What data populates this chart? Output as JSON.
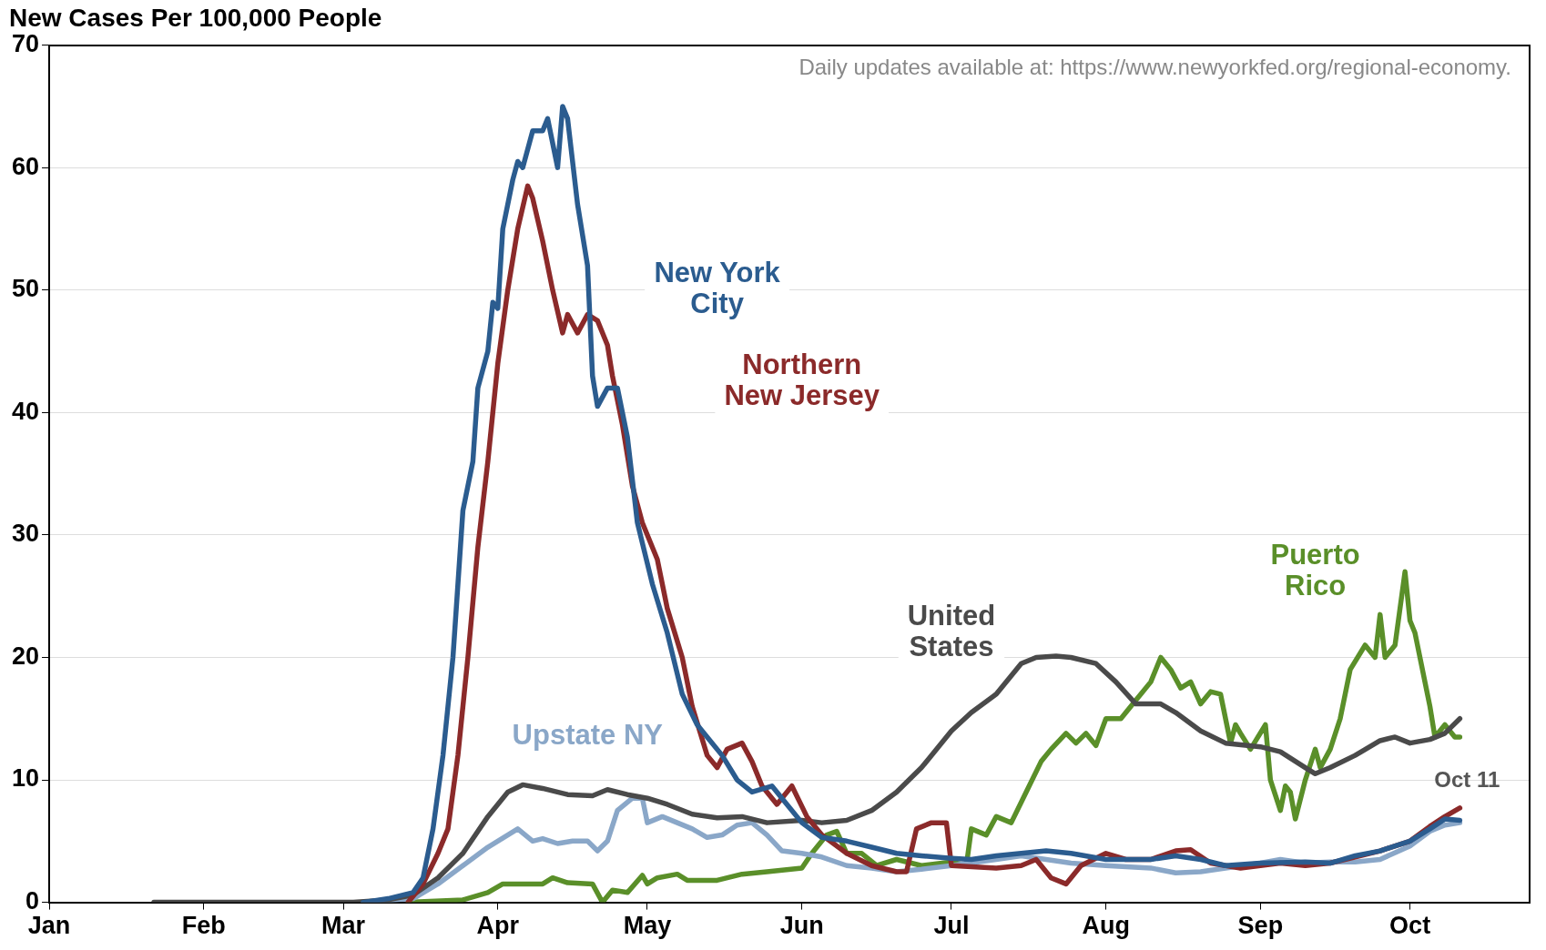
{
  "chart_data": {
    "type": "line",
    "title": "New Cases Per 100,000 People",
    "annotations": [
      "Daily updates available at: https://www.newyorkfed.org/regional-economy.",
      {
        "text": "Oct 11",
        "x": "--10-11",
        "y": 7.7
      }
    ],
    "xlim": [
      "--01-01",
      "--10-25"
    ],
    "xticks": [
      {
        "value": "--01-01",
        "label": "Jan"
      },
      {
        "value": "--02-01",
        "label": "Feb"
      },
      {
        "value": "--03-01",
        "label": "Mar"
      },
      {
        "value": "--04-01",
        "label": "Apr"
      },
      {
        "value": "--05-01",
        "label": "May"
      },
      {
        "value": "--06-01",
        "label": "Jun"
      },
      {
        "value": "--07-01",
        "label": "Jul"
      },
      {
        "value": "--08-01",
        "label": "Aug"
      },
      {
        "value": "--09-01",
        "label": "Sep"
      },
      {
        "value": "--10-01",
        "label": "Oct"
      }
    ],
    "ylim": [
      0,
      70
    ],
    "yticks": [
      0,
      10,
      20,
      30,
      40,
      50,
      60,
      70
    ],
    "grid": "y",
    "legend": false,
    "marker": "none",
    "line_style": "solid",
    "series": [
      {
        "name": "New York City",
        "color": "#2b5c8f",
        "x": [
          "--03-05",
          "--03-10",
          "--03-15",
          "--03-17",
          "--03-19",
          "--03-21",
          "--03-23",
          "--03-25",
          "--03-27",
          "--03-28",
          "--03-30",
          "--03-31",
          "--04-01",
          "--04-02",
          "--04-04",
          "--04-05",
          "--04-06",
          "--04-08",
          "--04-10",
          "--04-11",
          "--04-13",
          "--04-14",
          "--04-15",
          "--04-17",
          "--04-19",
          "--04-20",
          "--04-21",
          "--04-23",
          "--04-25",
          "--04-27",
          "--04-29",
          "--05-02",
          "--05-05",
          "--05-08",
          "--05-11",
          "--05-13",
          "--05-16",
          "--05-19",
          "--05-22",
          "--05-26",
          "--05-29",
          "--06-01",
          "--06-05",
          "--06-10",
          "--06-15",
          "--06-20",
          "--06-25",
          "--07-01",
          "--07-05",
          "--07-10",
          "--07-15",
          "--07-20",
          "--07-25",
          "--08-01",
          "--08-10",
          "--08-15",
          "--08-20",
          "--08-25",
          "--09-01",
          "--09-10",
          "--09-15",
          "--09-20",
          "--09-25",
          "--10-01",
          "--10-05",
          "--10-08",
          "--10-11"
        ],
        "values": [
          0,
          0.3,
          0.8,
          2,
          6,
          12,
          20,
          32,
          36,
          42,
          45,
          49,
          48.5,
          55,
          59,
          60.5,
          60,
          63,
          63,
          64,
          60,
          65,
          64,
          57,
          52,
          43,
          40.5,
          42,
          42,
          38,
          31,
          26,
          22,
          17,
          14.5,
          13.5,
          12,
          10,
          9,
          9.5,
          8,
          6.5,
          5.3,
          5,
          4.5,
          4,
          3.8,
          3.6,
          3.5,
          3.8,
          4,
          4.2,
          4,
          3.5,
          3.5,
          3.8,
          3.5,
          3,
          3.2,
          3.3,
          3.2,
          3.8,
          4.2,
          5,
          6,
          6.8,
          6.7
        ]
      },
      {
        "name": "Northern New Jersey",
        "color": "#8b2a2a",
        "x": [
          "--03-14",
          "--03-17",
          "--03-20",
          "--03-22",
          "--03-24",
          "--03-26",
          "--03-28",
          "--03-30",
          "--04-01",
          "--04-03",
          "--04-05",
          "--04-07",
          "--04-08",
          "--04-10",
          "--04-12",
          "--04-14",
          "--04-15",
          "--04-17",
          "--04-19",
          "--04-21",
          "--04-23",
          "--04-24",
          "--04-26",
          "--04-28",
          "--04-30",
          "--05-03",
          "--05-05",
          "--05-08",
          "--05-10",
          "--05-13",
          "--05-15",
          "--05-17",
          "--05-20",
          "--05-22",
          "--05-24",
          "--05-27",
          "--05-30",
          "--06-02",
          "--06-05",
          "--06-10",
          "--06-15",
          "--06-20",
          "--06-22",
          "--06-24",
          "--06-27",
          "--06-30",
          "--07-01",
          "--07-10",
          "--07-15",
          "--07-18",
          "--07-21",
          "--07-24",
          "--07-27",
          "--08-01",
          "--08-05",
          "--08-10",
          "--08-15",
          "--08-18",
          "--08-22",
          "--08-28",
          "--09-01",
          "--09-05",
          "--09-10",
          "--09-15",
          "--09-20",
          "--09-25",
          "--10-01",
          "--10-05",
          "--10-08",
          "--10-11"
        ],
        "values": [
          0,
          1.5,
          4,
          6,
          12,
          20,
          29,
          36,
          44,
          50,
          55,
          58.5,
          57.5,
          54,
          50,
          46.5,
          48,
          46.5,
          48,
          47.5,
          45.5,
          43,
          39,
          34,
          31,
          28,
          24,
          20,
          16,
          12,
          11,
          12.5,
          13,
          11.5,
          9.5,
          8,
          9.5,
          7,
          5.5,
          4,
          3,
          2.5,
          2.5,
          6,
          6.5,
          6.5,
          3,
          2.8,
          3,
          3.5,
          2,
          1.5,
          3,
          4,
          3.5,
          3.5,
          4.2,
          4.3,
          3.2,
          2.8,
          3,
          3.2,
          3,
          3.2,
          3.7,
          4.2,
          5,
          6.2,
          7,
          7.7
        ]
      },
      {
        "name": "United States",
        "color": "#4a4a4a",
        "x": [
          "--01-22",
          "--03-03",
          "--03-10",
          "--03-15",
          "--03-20",
          "--03-25",
          "--03-30",
          "--04-03",
          "--04-06",
          "--04-10",
          "--04-15",
          "--04-20",
          "--04-23",
          "--04-27",
          "--05-01",
          "--05-05",
          "--05-10",
          "--05-15",
          "--05-20",
          "--05-25",
          "--06-01",
          "--06-05",
          "--06-10",
          "--06-15",
          "--06-20",
          "--06-25",
          "--07-01",
          "--07-05",
          "--07-10",
          "--07-15",
          "--07-18",
          "--07-22",
          "--07-25",
          "--07-30",
          "--08-03",
          "--08-07",
          "--08-12",
          "--08-15",
          "--08-20",
          "--08-25",
          "--09-01",
          "--09-05",
          "--09-10",
          "--09-12",
          "--09-15",
          "--09-20",
          "--09-25",
          "--09-28",
          "--10-01",
          "--10-05",
          "--10-08",
          "--10-11"
        ],
        "values": [
          0,
          0,
          0.2,
          0.6,
          2,
          4,
          7,
          9,
          9.6,
          9.3,
          8.8,
          8.7,
          9.2,
          8.8,
          8.5,
          8,
          7.2,
          6.9,
          7,
          6.5,
          6.7,
          6.5,
          6.7,
          7.5,
          9,
          11,
          14,
          15.5,
          17,
          19.5,
          20,
          20.1,
          20,
          19.5,
          18,
          16.2,
          16.2,
          15.5,
          14,
          13,
          12.7,
          12.3,
          11,
          10.5,
          11,
          12,
          13.2,
          13.5,
          13,
          13.3,
          13.8,
          15
        ]
      },
      {
        "name": "Upstate NY",
        "color": "#8aa7c8",
        "x": [
          "--03-05",
          "--03-15",
          "--03-20",
          "--03-25",
          "--03-30",
          "--04-03",
          "--04-05",
          "--04-08",
          "--04-10",
          "--04-13",
          "--04-16",
          "--04-19",
          "--04-21",
          "--04-23",
          "--04-25",
          "--04-28",
          "--04-30",
          "--05-01",
          "--05-04",
          "--05-07",
          "--05-10",
          "--05-13",
          "--05-16",
          "--05-19",
          "--05-22",
          "--05-25",
          "--05-28",
          "--06-01",
          "--06-05",
          "--06-10",
          "--06-15",
          "--06-20",
          "--06-25",
          "--07-01",
          "--07-10",
          "--07-15",
          "--07-20",
          "--07-25",
          "--08-01",
          "--08-10",
          "--08-15",
          "--08-20",
          "--08-25",
          "--09-01",
          "--09-05",
          "--09-10",
          "--09-15",
          "--09-20",
          "--09-25",
          "--10-01",
          "--10-05",
          "--10-08",
          "--10-11"
        ],
        "values": [
          0,
          0.3,
          1.5,
          3,
          4.5,
          5.5,
          6,
          5,
          5.2,
          4.8,
          5,
          5,
          4.2,
          5,
          7.5,
          8.5,
          8.5,
          6.5,
          7,
          6.5,
          6,
          5.3,
          5.5,
          6.3,
          6.5,
          5.5,
          4.2,
          4,
          3.7,
          3,
          2.8,
          2.5,
          2.7,
          3,
          3.5,
          3.8,
          3.5,
          3.2,
          3,
          2.8,
          2.4,
          2.5,
          2.8,
          3.2,
          3.5,
          3.2,
          3.3,
          3.3,
          3.5,
          4.6,
          5.8,
          6.3,
          6.5
        ]
      },
      {
        "name": "Puerto Rico",
        "color": "#5a8f29",
        "x": [
          "--03-14",
          "--03-25",
          "--03-30",
          "--04-02",
          "--04-10",
          "--04-12",
          "--04-15",
          "--04-20",
          "--04-22",
          "--04-24",
          "--04-27",
          "--04-30",
          "--05-01",
          "--05-03",
          "--05-07",
          "--05-09",
          "--05-15",
          "--05-20",
          "--05-25",
          "--06-01",
          "--06-03",
          "--06-06",
          "--06-08",
          "--06-10",
          "--06-13",
          "--06-16",
          "--06-20",
          "--06-25",
          "--07-01",
          "--07-04",
          "--07-05",
          "--07-08",
          "--07-10",
          "--07-13",
          "--07-16",
          "--07-19",
          "--07-21",
          "--07-24",
          "--07-26",
          "--07-28",
          "--07-30",
          "--08-01",
          "--08-04",
          "--08-07",
          "--08-10",
          "--08-12",
          "--08-14",
          "--08-16",
          "--08-18",
          "--08-20",
          "--08-22",
          "--08-24",
          "--08-26",
          "--08-27",
          "--08-28",
          "--08-30",
          "--09-02",
          "--09-03",
          "--09-05",
          "--09-06",
          "--09-07",
          "--09-08",
          "--09-10",
          "--09-12",
          "--09-13",
          "--09-15",
          "--09-17",
          "--09-19",
          "--09-22",
          "--09-24",
          "--09-25",
          "--09-26",
          "--09-28",
          "--09-30",
          "--10-01",
          "--10-02",
          "--10-05",
          "--10-06",
          "--10-08",
          "--10-10",
          "--10-11"
        ],
        "values": [
          0,
          0.2,
          0.8,
          1.5,
          1.5,
          2,
          1.6,
          1.5,
          0,
          1,
          0.8,
          2.2,
          1.5,
          2,
          2.3,
          1.8,
          1.8,
          2.3,
          2.5,
          2.8,
          4,
          5.5,
          5.8,
          4,
          4,
          3,
          3.5,
          3,
          3.3,
          3,
          6,
          5.5,
          7,
          6.5,
          9,
          11.5,
          12.5,
          13.8,
          13,
          13.8,
          12.8,
          15,
          15,
          16.5,
          18,
          20,
          19,
          17.5,
          18,
          16.2,
          17.2,
          17,
          13,
          14.5,
          13.8,
          12.5,
          14.5,
          10,
          7.5,
          9.5,
          9,
          6.8,
          10,
          12.5,
          11,
          12.5,
          15,
          19,
          21,
          20,
          23.5,
          20,
          21,
          27,
          23,
          22,
          16,
          13.5,
          14.5,
          13.5,
          13.5
        ]
      }
    ]
  }
}
